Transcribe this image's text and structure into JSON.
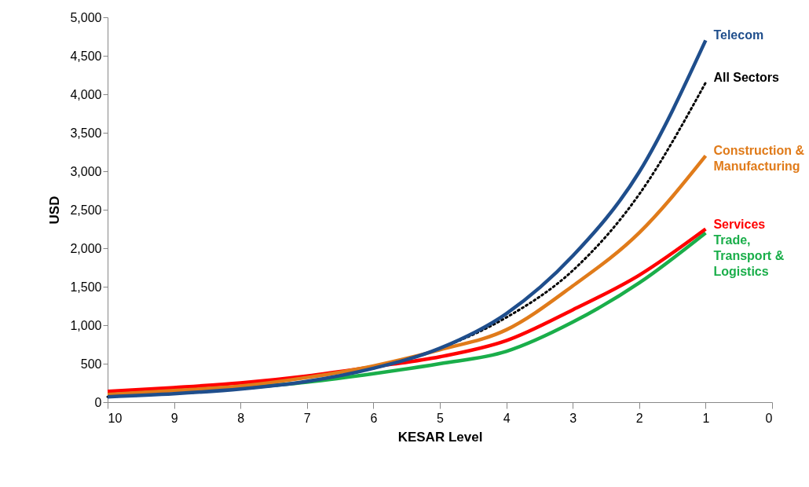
{
  "chart_data": {
    "type": "line",
    "xlabel": "KESAR Level",
    "ylabel": "USD",
    "x": [
      10,
      9,
      8,
      7,
      6,
      5,
      4,
      3,
      2,
      1
    ],
    "xlim": [
      10,
      0
    ],
    "xticks": [
      10,
      9,
      8,
      7,
      6,
      5,
      4,
      3,
      2,
      1,
      0
    ],
    "ylim": [
      0,
      5000
    ],
    "yticks": [
      0,
      500,
      {
        "value": 1000,
        "label": "1,000"
      },
      {
        "value": 1500,
        "label": "1,500"
      },
      {
        "value": 2000,
        "label": "2,000"
      },
      {
        "value": 2500,
        "label": "2,500"
      },
      {
        "value": 3000,
        "label": "3,000"
      },
      {
        "value": 3500,
        "label": "3,500"
      },
      {
        "value": 4000,
        "label": "4,000"
      },
      {
        "value": 4500,
        "label": "4,500"
      },
      {
        "value": 5000,
        "label": "5,000"
      }
    ],
    "grid": false,
    "legend": false,
    "marker": "none",
    "series": [
      {
        "name": "Telecom",
        "color": "#1f4e8c",
        "line_style": "solid",
        "values": [
          70,
          110,
          170,
          270,
          440,
          700,
          1150,
          1900,
          2990,
          4700
        ]
      },
      {
        "name": "All Sectors",
        "color": "#000000",
        "line_style": "dotted",
        "values": [
          70,
          110,
          170,
          270,
          440,
          700,
          1100,
          1710,
          2700,
          4150
        ]
      },
      {
        "name": "Construction & Manufacturing",
        "color": "#e07b1a",
        "line_style": "solid",
        "values": [
          100,
          150,
          210,
          320,
          470,
          680,
          940,
          1510,
          2200,
          3200
        ]
      },
      {
        "name": "Services",
        "color": "#ff0000",
        "line_style": "solid",
        "values": [
          140,
          190,
          250,
          340,
          460,
          590,
          800,
          1200,
          1650,
          2250
        ]
      },
      {
        "name": "Trade, Transport & Logistics",
        "color": "#1aae4a",
        "line_style": "solid",
        "values": [
          null,
          null,
          180,
          260,
          370,
          500,
          660,
          1040,
          1550,
          2200
        ]
      }
    ]
  }
}
